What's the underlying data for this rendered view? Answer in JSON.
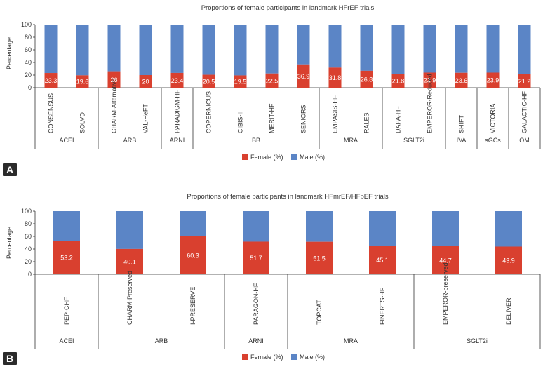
{
  "colors": {
    "female": "#d9402f",
    "male": "#5b85c6",
    "axis": "#333333",
    "grid": "#bfbfbf"
  },
  "chart_data": [
    {
      "panel": "A",
      "type": "bar",
      "stacked": true,
      "title": "Proportions of female participants in landmark HFrEF trials",
      "ylabel": "Percentage",
      "ylim": [
        0,
        100
      ],
      "yticks": [
        0,
        20,
        40,
        60,
        80,
        100
      ],
      "categories": [
        "CONSENSUS",
        "SOLVD",
        "CHARM-Alternative",
        "VAL-HeFT",
        "PARADIGM-HF",
        "COPERNICUS",
        "CIBIS-II",
        "MERIT-HF",
        "SENIORS",
        "EMPASIS-HF",
        "RALES",
        "DAPA-HF",
        "EMPEROR-Reduced",
        "SHIFT",
        "VICTORIA",
        "GALACTIC-HF"
      ],
      "groups": [
        {
          "label": "ACEI",
          "count": 2
        },
        {
          "label": "ARB",
          "count": 2
        },
        {
          "label": "ARNI",
          "count": 1
        },
        {
          "label": "BB",
          "count": 4
        },
        {
          "label": "MRA",
          "count": 2
        },
        {
          "label": "SGLT2i",
          "count": 2
        },
        {
          "label": "IVA",
          "count": 1
        },
        {
          "label": "sGCs",
          "count": 1
        },
        {
          "label": "OM",
          "count": 1
        }
      ],
      "series": [
        {
          "name": "Female (%)",
          "values": [
            23.3,
            19.6,
            26,
            20,
            23.4,
            20.5,
            19.5,
            22.5,
            36.9,
            31.8,
            26.8,
            21.8,
            23.9,
            23.6,
            23.9,
            21.2
          ],
          "labels": [
            "23.3",
            "19.6",
            "26",
            "20",
            "23.4",
            "20.5",
            "19.5",
            "22.5",
            "36.9",
            "31.8",
            "26.8",
            "21.8",
            "23.9",
            "23.6",
            "23.9",
            "21.2"
          ]
        },
        {
          "name": "Male (%)",
          "values": [
            76.7,
            80.4,
            74,
            80,
            76.6,
            79.5,
            80.5,
            77.5,
            63.1,
            68.2,
            73.2,
            78.2,
            76.1,
            76.4,
            76.1,
            78.8
          ]
        }
      ],
      "legend": [
        "Female (%)",
        "Male (%)"
      ],
      "legend_position": "bottom"
    },
    {
      "panel": "B",
      "type": "bar",
      "stacked": true,
      "title": "Proportions of female participants in landmark HFmrEF/HFpEF trials",
      "ylabel": "Percentage",
      "ylim": [
        0,
        100
      ],
      "yticks": [
        0,
        20,
        40,
        60,
        80,
        100
      ],
      "categories": [
        "PEP-CHF",
        "CHARM-Preserved",
        "I-PRESERVE",
        "PARAGON-HF",
        "TOPCAT",
        "FINERTS-HF",
        "EMPEROR-preserved",
        "DELIVER"
      ],
      "groups": [
        {
          "label": "ACEI",
          "count": 1
        },
        {
          "label": "ARB",
          "count": 2
        },
        {
          "label": "ARNI",
          "count": 1
        },
        {
          "label": "MRA",
          "count": 2
        },
        {
          "label": "SGLT2i",
          "count": 2
        }
      ],
      "series": [
        {
          "name": "Female (%)",
          "values": [
            53.2,
            40.1,
            60.3,
            51.7,
            51.5,
            45.1,
            44.7,
            43.9
          ],
          "labels": [
            "53.2",
            "40.1",
            "60.3",
            "51.7",
            "51.5",
            "45.1",
            "44.7",
            "43.9"
          ]
        },
        {
          "name": "Male (%)",
          "values": [
            46.8,
            59.9,
            39.7,
            48.3,
            48.5,
            54.9,
            55.3,
            56.1
          ]
        }
      ],
      "legend": [
        "Female (%)",
        "Male (%)"
      ],
      "legend_position": "bottom"
    }
  ]
}
